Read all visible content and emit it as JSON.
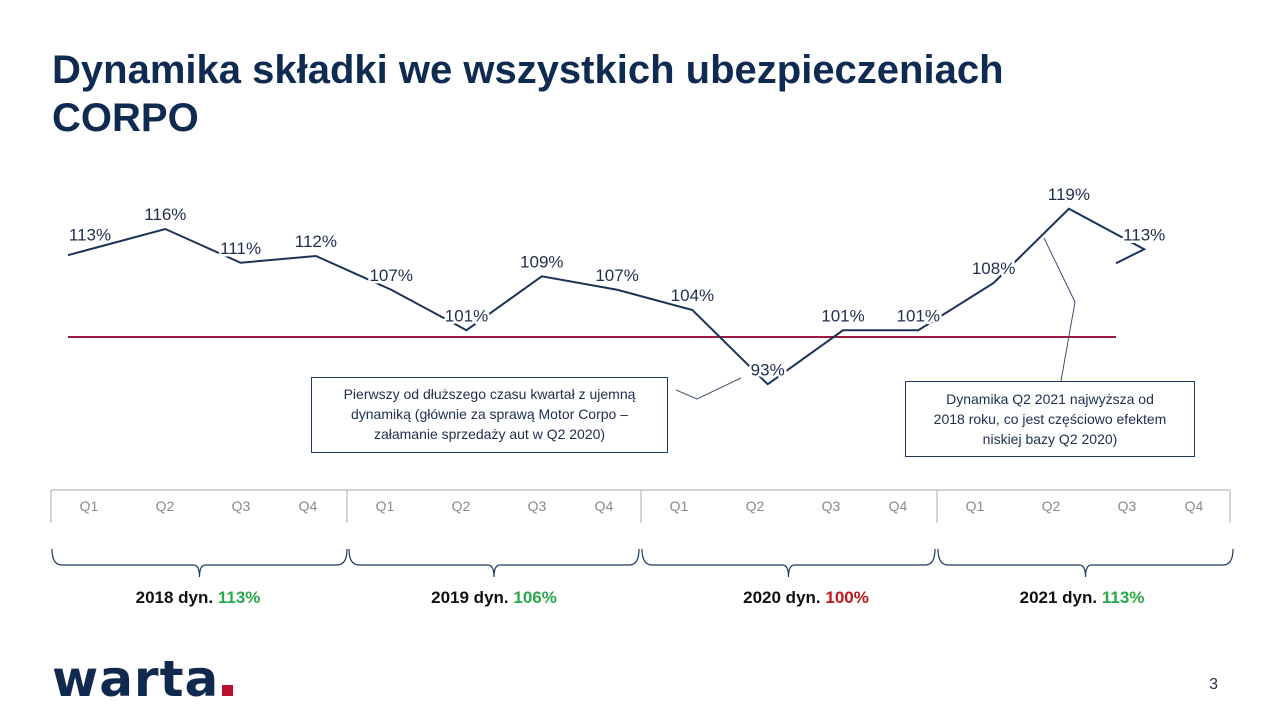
{
  "title": {
    "line1": "Dynamika składki we wszystkich ubezpieczeniach",
    "line2": "CORPO"
  },
  "chart_data": {
    "type": "line",
    "title": "",
    "xlabel": "",
    "ylabel": "",
    "x": [
      "2018 Q1",
      "2018 Q2",
      "2018 Q3",
      "2018 Q4",
      "2019 Q1",
      "2019 Q2",
      "2019 Q3",
      "2019 Q4",
      "2020 Q1",
      "2020 Q2",
      "2020 Q3",
      "2020 Q4",
      "2021 Q1",
      "2021 Q2",
      "2021 Q3"
    ],
    "series": [
      {
        "values": [
          113,
          116,
          111,
          112,
          107,
          101,
          109,
          107,
          104,
          93,
          101,
          101,
          108,
          119,
          113
        ],
        "labels": [
          "113%",
          "116%",
          "111%",
          "112%",
          "107%",
          "101%",
          "109%",
          "107%",
          "104%",
          "93%",
          "101%",
          "101%",
          "108%",
          "119%",
          "113%"
        ],
        "color": "#1a3357"
      }
    ],
    "reference_line": {
      "value": 100,
      "color": "#9b1b45"
    },
    "quarter_labels": [
      "Q1",
      "Q2",
      "Q3",
      "Q4"
    ],
    "years": [
      {
        "year_label": "2018 dyn.",
        "dyn": "113%",
        "color": "#2aa84a"
      },
      {
        "year_label": "2019 dyn.",
        "dyn": "106%",
        "color": "#2aa84a"
      },
      {
        "year_label": "2020 dyn.",
        "dyn": "100%",
        "color": "#c0161c"
      },
      {
        "year_label": "2021 dyn.",
        "dyn": "113%",
        "color": "#2aa84a"
      }
    ],
    "ylim": [
      88,
      124
    ],
    "grid": false,
    "legend": "none"
  },
  "callouts": {
    "left": {
      "lines": [
        "Pierwszy od dłuższego  czasu kwartał z ujemną",
        "dynamiką (głównie za sprawą Motor Corpo –",
        "załamanie sprzedaży aut w Q2 2020)"
      ]
    },
    "right": {
      "lines": [
        "Dynamika Q2 2021 najwyższa  od",
        "2018 roku, co jest częściowo efektem",
        "niskiej bazy Q2 2020)"
      ]
    }
  },
  "logo": {
    "text": "warta"
  },
  "page_number": "3"
}
